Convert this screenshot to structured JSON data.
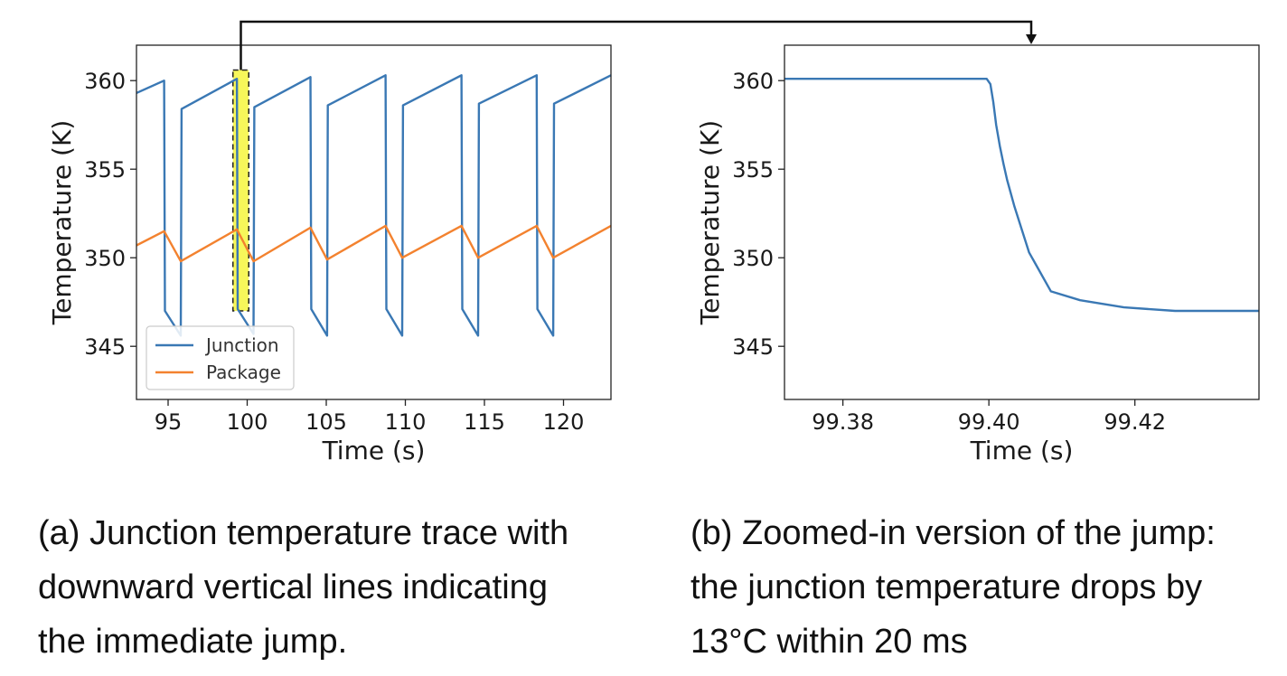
{
  "chart_data": [
    {
      "id": "a",
      "type": "line",
      "xlabel": "Time (s)",
      "ylabel": "Temperature (K)",
      "xlim": [
        93,
        123
      ],
      "ylim": [
        342,
        362
      ],
      "xticks": [
        95,
        100,
        105,
        110,
        115,
        120
      ],
      "yticks": [
        345,
        350,
        355,
        360
      ],
      "legend": {
        "position": "lower-left",
        "entries": [
          "Junction",
          "Package"
        ]
      },
      "highlight": {
        "x_range": [
          99.1,
          100.1
        ],
        "y_range": [
          347.0,
          360.6
        ],
        "fill": "#f7f75a"
      },
      "series": [
        {
          "name": "Junction",
          "color": "#3a78b4",
          "x": [
            93.0,
            94.75,
            94.8,
            95.8,
            95.85,
            99.35,
            99.4,
            100.4,
            100.45,
            104.0,
            104.05,
            105.05,
            105.1,
            108.75,
            108.8,
            109.8,
            109.85,
            113.55,
            113.6,
            114.6,
            114.65,
            118.3,
            118.35,
            119.35,
            119.4,
            123.0
          ],
          "y": [
            359.3,
            360.0,
            347.0,
            345.6,
            358.4,
            360.1,
            347.1,
            345.7,
            358.5,
            360.2,
            347.1,
            345.6,
            358.6,
            360.3,
            347.1,
            345.6,
            358.6,
            360.3,
            347.1,
            345.6,
            358.7,
            360.3,
            347.1,
            345.6,
            358.7,
            360.3
          ]
        },
        {
          "name": "Package",
          "color": "#f3822f",
          "x": [
            93.0,
            94.75,
            95.8,
            99.35,
            100.4,
            104.0,
            105.05,
            108.75,
            109.8,
            113.55,
            114.6,
            118.3,
            119.35,
            123.0
          ],
          "y": [
            350.7,
            351.5,
            349.8,
            351.6,
            349.8,
            351.7,
            349.9,
            351.8,
            350.0,
            351.8,
            350.0,
            351.8,
            350.0,
            351.8
          ]
        }
      ]
    },
    {
      "id": "b",
      "type": "line",
      "xlabel": "Time (s)",
      "ylabel": "Temperature (K)",
      "xlim": [
        99.372,
        99.437
      ],
      "ylim": [
        342,
        362
      ],
      "xticks": [
        99.38,
        99.4,
        99.42
      ],
      "xtick_labels": [
        "99.38",
        "99.40",
        "99.42"
      ],
      "yticks": [
        345,
        350,
        355,
        360
      ],
      "series": [
        {
          "name": "Junction",
          "color": "#3a78b4",
          "x": [
            99.372,
            99.3997,
            99.4002,
            99.4006,
            99.401,
            99.4015,
            99.402,
            99.4025,
            99.4035,
            99.4055,
            99.4085,
            99.4125,
            99.4185,
            99.4255,
            99.437
          ],
          "y": [
            360.1,
            360.1,
            359.8,
            358.8,
            357.5,
            356.3,
            355.3,
            354.4,
            352.9,
            350.3,
            348.1,
            347.6,
            347.2,
            347.0,
            347.0
          ]
        }
      ]
    }
  ],
  "captions": {
    "a": [
      "(a) Junction temperature trace with",
      "downward vertical lines indicating",
      "the immediate jump."
    ],
    "b": [
      "(b) Zoomed-in version of the jump:",
      "the junction temperature drops by",
      "13°C within 20 ms"
    ]
  }
}
